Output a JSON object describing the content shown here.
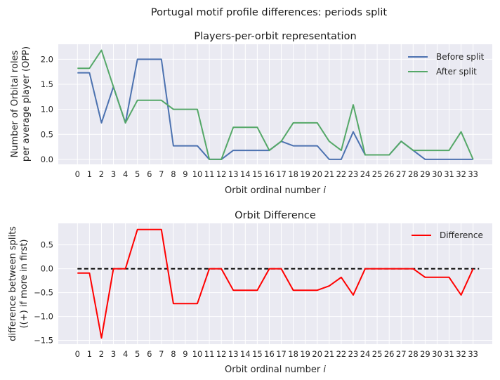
{
  "figure": {
    "suptitle": "Portugal motif profile differences: periods split"
  },
  "chart_data": [
    {
      "type": "line",
      "title": "Players-per-orbit representation",
      "xlabel": "Orbit ordinal number ",
      "xlabel_italic": "i",
      "ylabel_lines": [
        "Number of Orbital roles",
        "per average player (OPP)"
      ],
      "ylim": [
        -0.1,
        2.3
      ],
      "yticks": [
        "0.0",
        "0.5",
        "1.0",
        "1.5",
        "2.0"
      ],
      "ytick_values": [
        0,
        0.5,
        1.0,
        1.5,
        2.0
      ],
      "x": [
        0,
        1,
        2,
        3,
        4,
        5,
        6,
        7,
        8,
        9,
        10,
        11,
        12,
        13,
        14,
        15,
        16,
        17,
        18,
        19,
        20,
        21,
        22,
        23,
        24,
        25,
        26,
        27,
        28,
        29,
        30,
        31,
        32,
        33
      ],
      "xticks": [
        "0",
        "1",
        "2",
        "3",
        "4",
        "5",
        "6",
        "7",
        "8",
        "9",
        "10",
        "11",
        "12",
        "13",
        "14",
        "15",
        "16",
        "17",
        "18",
        "19",
        "20",
        "21",
        "22",
        "23",
        "24",
        "25",
        "26",
        "27",
        "28",
        "29",
        "30",
        "31",
        "32",
        "33"
      ],
      "grid": true,
      "legend_position": "top-right",
      "series": [
        {
          "name": "Before split",
          "color": "#4c72b0",
          "values": [
            1.73,
            1.73,
            0.73,
            1.45,
            0.73,
            2.0,
            2.0,
            2.0,
            0.27,
            0.27,
            0.27,
            0.0,
            0.0,
            0.18,
            0.18,
            0.18,
            0.18,
            0.36,
            0.27,
            0.27,
            0.27,
            0.0,
            0.0,
            0.55,
            0.09,
            0.09,
            0.09,
            0.36,
            0.18,
            0.0,
            0.0,
            0.0,
            0.0,
            0.0
          ]
        },
        {
          "name": "After split",
          "color": "#55a868",
          "values": [
            1.82,
            1.82,
            2.18,
            1.45,
            0.73,
            1.18,
            1.18,
            1.18,
            1.0,
            1.0,
            1.0,
            0.0,
            0.0,
            0.64,
            0.64,
            0.64,
            0.18,
            0.36,
            0.73,
            0.73,
            0.73,
            0.36,
            0.18,
            1.09,
            0.09,
            0.09,
            0.09,
            0.36,
            0.18,
            0.18,
            0.18,
            0.18,
            0.55,
            0.0
          ]
        }
      ]
    },
    {
      "type": "line",
      "title": "Orbit Difference",
      "xlabel": "Orbit ordinal number ",
      "xlabel_italic": "i",
      "ylabel_lines": [
        "difference between splits",
        "((+) if more in first)"
      ],
      "ylim": [
        -1.58,
        0.95
      ],
      "yticks": [
        "0.5",
        "0.0",
        "−0.5",
        "−1.0",
        "−1.5"
      ],
      "ytick_values": [
        0.5,
        0.0,
        -0.5,
        -1.0,
        -1.5
      ],
      "x": [
        0,
        1,
        2,
        3,
        4,
        5,
        6,
        7,
        8,
        9,
        10,
        11,
        12,
        13,
        14,
        15,
        16,
        17,
        18,
        19,
        20,
        21,
        22,
        23,
        24,
        25,
        26,
        27,
        28,
        29,
        30,
        31,
        32,
        33
      ],
      "xticks": [
        "0",
        "1",
        "2",
        "3",
        "4",
        "5",
        "6",
        "7",
        "8",
        "9",
        "10",
        "11",
        "12",
        "13",
        "14",
        "15",
        "16",
        "17",
        "18",
        "19",
        "20",
        "21",
        "22",
        "23",
        "24",
        "25",
        "26",
        "27",
        "28",
        "29",
        "30",
        "31",
        "32",
        "33"
      ],
      "grid": true,
      "legend_position": "top-right",
      "zero_line": {
        "color": "#000000",
        "style": "dashed",
        "from": 0,
        "to": 33.5
      },
      "series": [
        {
          "name": "Difference",
          "color": "#ff0000",
          "values": [
            -0.09,
            -0.09,
            -1.45,
            0.0,
            0.0,
            0.82,
            0.82,
            0.82,
            -0.73,
            -0.73,
            -0.73,
            0.0,
            0.0,
            -0.45,
            -0.45,
            -0.45,
            0.0,
            0.0,
            -0.45,
            -0.45,
            -0.45,
            -0.36,
            -0.18,
            -0.55,
            0.0,
            0.0,
            0.0,
            0.0,
            0.0,
            -0.18,
            -0.18,
            -0.18,
            -0.55,
            0.0
          ]
        }
      ]
    }
  ]
}
